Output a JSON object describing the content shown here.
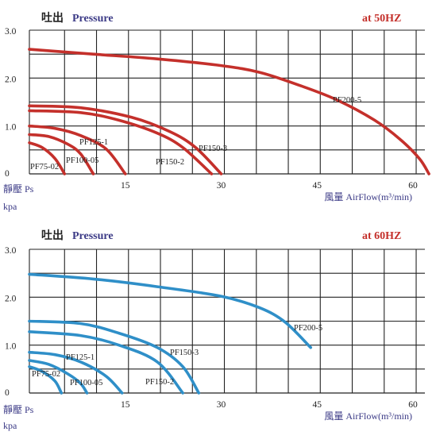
{
  "chart_data": [
    {
      "type": "line",
      "title_cn": "吐出",
      "title_en": "Pressure",
      "frequency": "at 50HZ",
      "ylabel_cn": "靜壓",
      "ylabel_en": "Ps",
      "yunit": "kpa",
      "xlabel_cn": "風量",
      "xlabel_en": "AirFlow(m³/min)",
      "xticks": [
        "15",
        "30",
        "45",
        "60"
      ],
      "yticks": [
        "0",
        "1.0",
        "2.0",
        "3.0"
      ],
      "xlim": [
        0,
        64
      ],
      "ylim": [
        0,
        3.0
      ],
      "x_grid": [
        0,
        5.5,
        10.5,
        15.5,
        20.5,
        25.5,
        30.5,
        35.5,
        40.5,
        45.5,
        50.5,
        55.5,
        60.5
      ],
      "y_grid": [
        0.5,
        1.0,
        1.5,
        2.0,
        2.5,
        3.0
      ],
      "grid": true,
      "line_color": "#c4302b",
      "series": [
        {
          "name": "PF75-02",
          "x": [
            0,
            2,
            4,
            5.5
          ],
          "y": [
            0.65,
            0.55,
            0.32,
            0.0
          ]
        },
        {
          "name": "PF100-05",
          "x": [
            0,
            3,
            6,
            8,
            10
          ],
          "y": [
            0.82,
            0.78,
            0.62,
            0.42,
            0.0
          ]
        },
        {
          "name": "PF125-1",
          "x": [
            0,
            4,
            8,
            12,
            15
          ],
          "y": [
            1.0,
            0.95,
            0.8,
            0.52,
            0.0
          ]
        },
        {
          "name": "PF150-2",
          "x": [
            0,
            8,
            14,
            20,
            24,
            28.5
          ],
          "y": [
            1.32,
            1.28,
            1.12,
            0.85,
            0.55,
            0.0
          ]
        },
        {
          "name": "PF150-3",
          "x": [
            0,
            8,
            16,
            22,
            26,
            30
          ],
          "y": [
            1.42,
            1.38,
            1.18,
            0.88,
            0.55,
            0.0
          ]
        },
        {
          "name": "PF200-5",
          "x": [
            0,
            10,
            20,
            30,
            36,
            42,
            48,
            54,
            58,
            61,
            62.5
          ],
          "y": [
            2.6,
            2.5,
            2.4,
            2.26,
            2.12,
            1.86,
            1.55,
            1.12,
            0.72,
            0.32,
            0.0
          ]
        }
      ]
    },
    {
      "type": "line",
      "title_cn": "吐出",
      "title_en": "Pressure",
      "frequency": "at 60HZ",
      "ylabel_cn": "靜壓",
      "ylabel_en": "Ps",
      "yunit": "kpa",
      "xlabel_cn": "風量",
      "xlabel_en": "AirFlow(m³/min)",
      "xticks": [
        "15",
        "30",
        "45",
        "60"
      ],
      "yticks": [
        "0",
        "1.0",
        "2.0",
        "3.0"
      ],
      "xlim": [
        0,
        64
      ],
      "ylim": [
        0,
        3.0
      ],
      "x_grid": [
        0,
        5.5,
        10.5,
        15.5,
        20.5,
        25.5,
        30.5,
        35.5,
        40.5,
        45.5,
        50.5,
        55.5,
        60.5
      ],
      "y_grid": [
        0.5,
        1.0,
        1.5,
        2.0,
        2.5,
        3.0
      ],
      "grid": true,
      "line_color": "#2f8fc8",
      "series": [
        {
          "name": "PF75-02",
          "x": [
            0,
            2,
            4,
            5
          ],
          "y": [
            0.55,
            0.45,
            0.25,
            0.0
          ]
        },
        {
          "name": "PF100-05",
          "x": [
            0,
            3,
            6,
            8,
            9
          ],
          "y": [
            0.68,
            0.6,
            0.4,
            0.2,
            0.0
          ]
        },
        {
          "name": "PF125-1",
          "x": [
            0,
            4,
            8,
            12,
            14.5
          ],
          "y": [
            0.85,
            0.8,
            0.65,
            0.35,
            0.0
          ]
        },
        {
          "name": "PF150-2",
          "x": [
            0,
            8,
            14,
            20,
            24
          ],
          "y": [
            1.28,
            1.2,
            1.0,
            0.65,
            0.0
          ]
        },
        {
          "name": "PF150-3",
          "x": [
            0,
            8,
            14,
            20,
            24,
            26.5
          ],
          "y": [
            1.5,
            1.45,
            1.25,
            0.95,
            0.55,
            0.0
          ]
        },
        {
          "name": "PF200-5",
          "x": [
            0,
            10,
            20,
            30,
            36,
            40,
            44
          ],
          "y": [
            2.48,
            2.38,
            2.22,
            2.02,
            1.78,
            1.48,
            0.95
          ]
        }
      ]
    }
  ]
}
